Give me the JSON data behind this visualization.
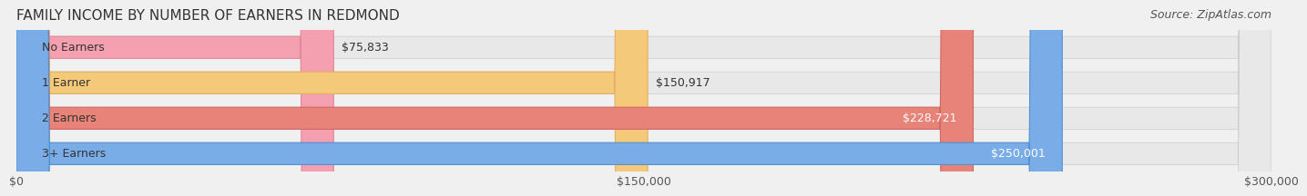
{
  "title": "FAMILY INCOME BY NUMBER OF EARNERS IN REDMOND",
  "source": "Source: ZipAtlas.com",
  "categories": [
    "No Earners",
    "1 Earner",
    "2 Earners",
    "3+ Earners"
  ],
  "values": [
    75833,
    150917,
    228721,
    250001
  ],
  "bar_colors": [
    "#f4a0b0",
    "#f5c97a",
    "#e8837a",
    "#7aade8"
  ],
  "bar_edge_colors": [
    "#e08898",
    "#e0b060",
    "#d06860",
    "#5090d0"
  ],
  "value_labels": [
    "$75,833",
    "$150,917",
    "$228,721",
    "$250,001"
  ],
  "xlim": [
    0,
    300000
  ],
  "xtick_values": [
    0,
    150000,
    300000
  ],
  "xtick_labels": [
    "$0",
    "$150,000",
    "$300,000"
  ],
  "bg_color": "#f0f0f0",
  "bar_bg_color": "#e8e8e8",
  "title_fontsize": 11,
  "source_fontsize": 9,
  "label_fontsize": 9,
  "value_fontsize": 9
}
